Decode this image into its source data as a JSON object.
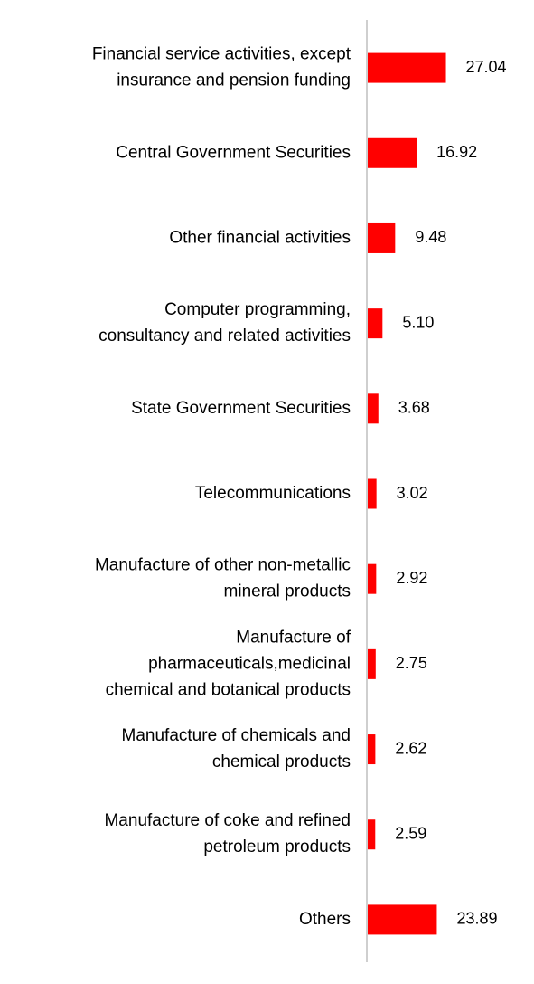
{
  "chart_data": {
    "type": "bar",
    "orientation": "horizontal",
    "categories": [
      "Financial service activities, except insurance and pension funding",
      "Central Government Securities",
      "Other financial activities",
      "Computer programming, consultancy and related activities",
      "State Government Securities",
      "Telecommunications",
      "Manufacture of other non-metallic mineral products",
      "Manufacture of pharmaceuticals,medicinal chemical and botanical products",
      "Manufacture of chemicals and chemical products",
      "Manufacture of coke and refined petroleum products",
      "Others"
    ],
    "category_lines": [
      [
        "Financial service activities, except",
        "insurance and pension funding"
      ],
      [
        "Central Government Securities"
      ],
      [
        "Other financial activities"
      ],
      [
        "Computer programming,",
        "consultancy and related activities"
      ],
      [
        "State Government Securities"
      ],
      [
        "Telecommunications"
      ],
      [
        "Manufacture of other non-metallic",
        "mineral products"
      ],
      [
        "Manufacture of",
        "pharmaceuticals,medicinal",
        "chemical and botanical products"
      ],
      [
        "Manufacture of chemicals and",
        "chemical products"
      ],
      [
        "Manufacture of coke and refined",
        "petroleum products"
      ],
      [
        "Others"
      ]
    ],
    "values": [
      27.04,
      16.92,
      9.48,
      5.1,
      3.68,
      3.02,
      2.92,
      2.75,
      2.62,
      2.59,
      23.89
    ],
    "value_labels": [
      "27.04",
      "16.92",
      "9.48",
      "5.10",
      "3.68",
      "3.02",
      "2.92",
      "2.75",
      "2.62",
      "2.59",
      "23.89"
    ],
    "bar_color": "#ff0000",
    "axis_color": "#bfbfbf",
    "grid": false,
    "legend": "none"
  }
}
